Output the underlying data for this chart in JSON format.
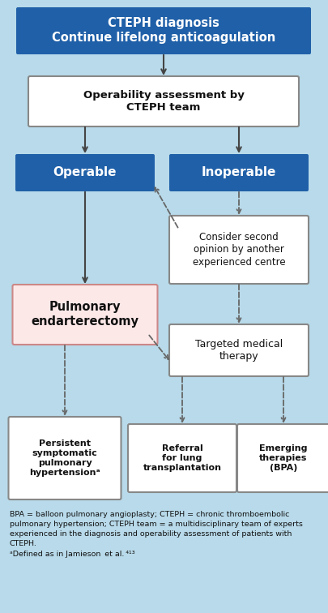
{
  "bg_color": "#b8daea",
  "blue_box_color": "#2060a8",
  "blue_text_color": "#ffffff",
  "white_box_color": "#ffffff",
  "white_box_edge": "#888888",
  "pink_box_color": "#fde8e8",
  "pink_box_edge": "#cc8888",
  "dark_text": "#111111",
  "arrow_solid_color": "#444444",
  "arrow_dashed_color": "#666666",
  "title_text": "CTEPH diagnosis\nContinue lifelong anticoagulation",
  "box2_text": "Operability assessment by\nCTEPH team",
  "box3_text": "Operable",
  "box4_text": "Inoperable",
  "box5_text": "Consider second\nopinion by another\nexperienced centre",
  "box6_text": "Pulmonary\nendarterectomy",
  "box7_text": "Targeted medical\ntherapy",
  "box8_text": "Persistent\nsymptomatic\npulmonary\nhypertensionᵃ",
  "box9_text": "Referral\nfor lung\ntransplantation",
  "box10_text": "Emerging\ntherapies\n(BPA)",
  "footer_text": "BPA = balloon pulmonary angioplasty; CTEPH = chronic thromboembolic\npulmonary hypertension; CTEPH team = a multidisciplinary team of experts\nexperienced in the diagnosis and operability assessment of patients with\nCTEPH.\nᵃDefined as in Jamieson  et al. ⁴¹³"
}
